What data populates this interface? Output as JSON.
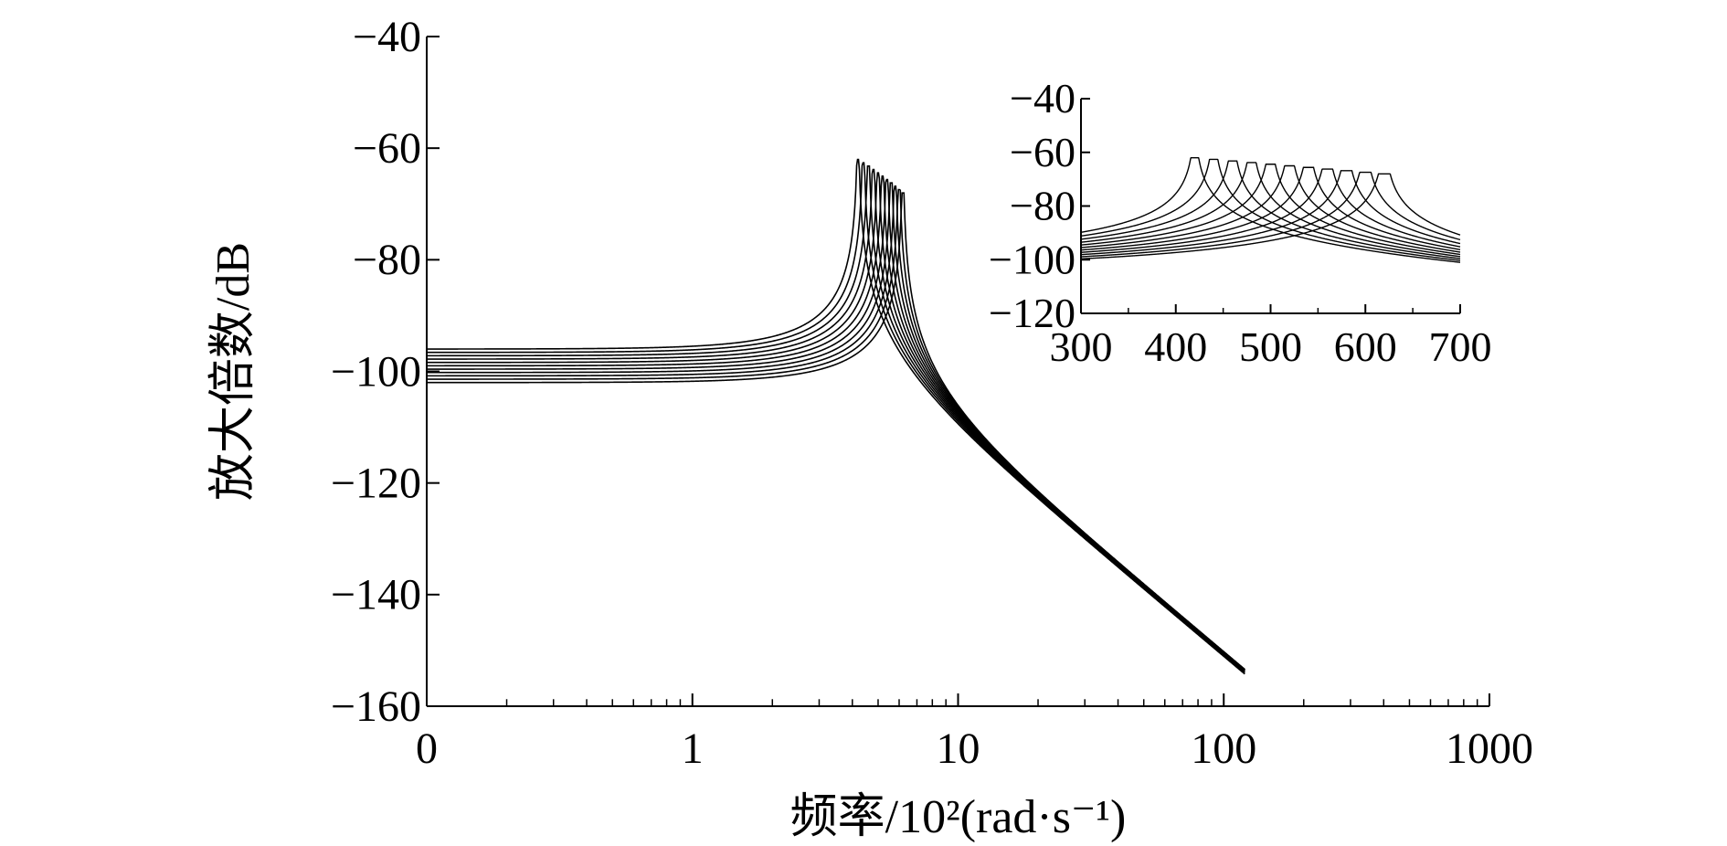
{
  "chart_data": [
    {
      "type": "line",
      "title": "",
      "xlabel": "频率/10²(rad·s⁻¹)",
      "ylabel": "放大倍数/dB",
      "x_scale": "log",
      "xlim": [
        0.1,
        1000
      ],
      "ylim": [
        -160,
        -40
      ],
      "x_ticks": [
        {
          "value": 0.1,
          "label": "0"
        },
        {
          "value": 1,
          "label": "1"
        },
        {
          "value": 10,
          "label": "10"
        },
        {
          "value": 100,
          "label": "100"
        },
        {
          "value": 1000,
          "label": "1000"
        }
      ],
      "y_ticks": [
        {
          "value": -40,
          "label": "−40"
        },
        {
          "value": -60,
          "label": "−60"
        },
        {
          "value": -80,
          "label": "−80"
        },
        {
          "value": -100,
          "label": "−100"
        },
        {
          "value": -120,
          "label": "−120"
        },
        {
          "value": -140,
          "label": "−140"
        },
        {
          "value": -160,
          "label": "−160"
        }
      ],
      "grid": false,
      "legend": "none",
      "x_end": 120,
      "peak_clip": -45,
      "series": [
        {
          "resonance": 4.2,
          "low_level": -96
        },
        {
          "resonance": 4.4,
          "low_level": -96.6
        },
        {
          "resonance": 4.6,
          "low_level": -97.2
        },
        {
          "resonance": 4.8,
          "low_level": -97.8
        },
        {
          "resonance": 5.0,
          "low_level": -98.4
        },
        {
          "resonance": 5.2,
          "low_level": -99.0
        },
        {
          "resonance": 5.4,
          "low_level": -99.6
        },
        {
          "resonance": 5.6,
          "low_level": -100.2
        },
        {
          "resonance": 5.8,
          "low_level": -100.8
        },
        {
          "resonance": 6.0,
          "low_level": -101.4
        },
        {
          "resonance": 6.2,
          "low_level": -102.0
        }
      ]
    },
    {
      "type": "line",
      "title": "",
      "xlabel": "",
      "ylabel": "",
      "x_scale": "linear",
      "xlim": [
        300,
        700
      ],
      "ylim": [
        -120,
        -40
      ],
      "x_ticks": [
        {
          "value": 300,
          "label": "300"
        },
        {
          "value": 400,
          "label": "400"
        },
        {
          "value": 500,
          "label": "500"
        },
        {
          "value": 600,
          "label": "600"
        },
        {
          "value": 700,
          "label": "700"
        }
      ],
      "y_ticks": [
        {
          "value": -40,
          "label": "−40"
        },
        {
          "value": -60,
          "label": "−60"
        },
        {
          "value": -80,
          "label": "−80"
        },
        {
          "value": -100,
          "label": "−100"
        },
        {
          "value": -120,
          "label": "−120"
        }
      ],
      "grid": false,
      "legend": "none",
      "peak_clip": -47,
      "series": [
        {
          "resonance": 420,
          "low_level": -96
        },
        {
          "resonance": 440,
          "low_level": -96.6
        },
        {
          "resonance": 460,
          "low_level": -97.2
        },
        {
          "resonance": 480,
          "low_level": -97.8
        },
        {
          "resonance": 500,
          "low_level": -98.4
        },
        {
          "resonance": 520,
          "low_level": -99.0
        },
        {
          "resonance": 540,
          "low_level": -99.6
        },
        {
          "resonance": 560,
          "low_level": -100.2
        },
        {
          "resonance": 580,
          "low_level": -100.8
        },
        {
          "resonance": 600,
          "low_level": -101.4
        },
        {
          "resonance": 620,
          "low_level": -102.0
        }
      ]
    }
  ]
}
